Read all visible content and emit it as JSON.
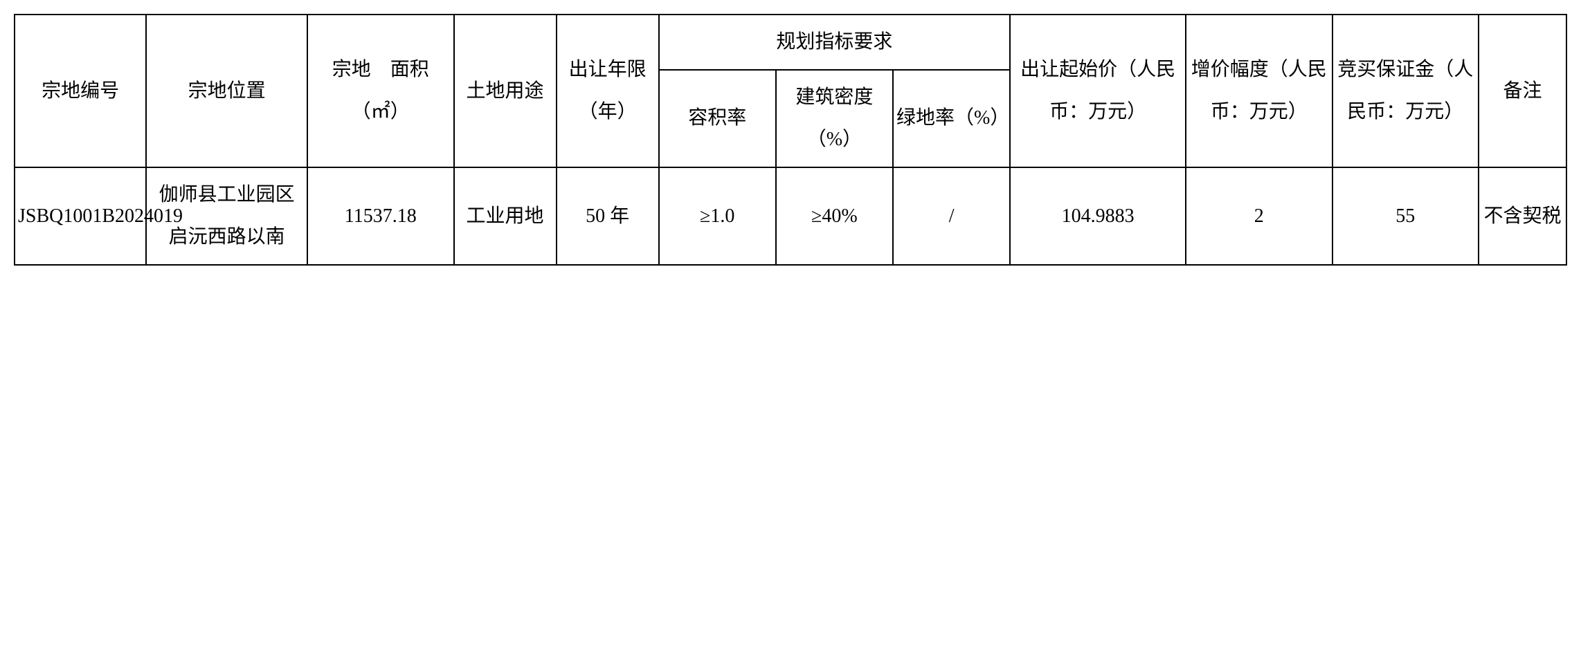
{
  "table": {
    "headers": {
      "parcel_number": "宗地编号",
      "parcel_location": "宗地位置",
      "parcel_area": "宗地　面积（㎡）",
      "land_use": "土地用途",
      "transfer_years": "出让年限（年）",
      "planning_requirements": "规划指标要求",
      "plot_ratio": "容积率",
      "building_density": "建筑密度（%）",
      "green_ratio": "绿地率（%）",
      "starting_price": "出让起始价（人民币：万元）",
      "increment": "增价幅度（人民币：万元）",
      "deposit": "竞买保证金（人民币：万元）",
      "remarks": "备注"
    },
    "rows": [
      {
        "parcel_number": "JSBQ1001B2024019",
        "parcel_location": "伽师县工业园区启沅西路以南",
        "parcel_area": "11537.18",
        "land_use": "工业用地",
        "transfer_years": "50 年",
        "plot_ratio": "≥1.0",
        "building_density": "≥40%",
        "green_ratio": "/",
        "starting_price": "104.9883",
        "increment": "2",
        "deposit": "55",
        "remarks": "不含契税"
      }
    ],
    "styling": {
      "border_color": "#000000",
      "border_width": 2,
      "background_color": "#ffffff",
      "text_color": "#000000",
      "font_size": 28,
      "line_height": 2.2,
      "font_family": "SimSun"
    }
  }
}
